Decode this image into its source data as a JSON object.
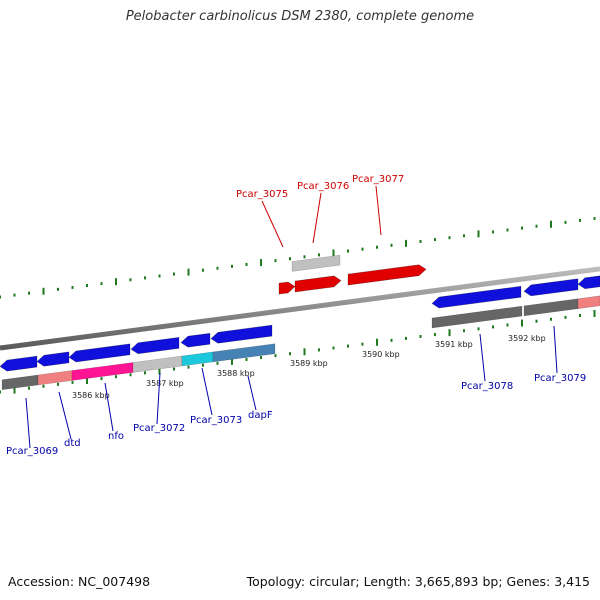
{
  "title": "Pelobacter carbinolicus DSM 2380, complete genome",
  "footer": {
    "accession": "Accession: NC_007498",
    "summary": "Topology: circular; Length: 3,665,893 bp; Genes: 3,415"
  },
  "colors": {
    "backbone": "#888888",
    "tick": "#1f7a1f",
    "forward_gene": "#e00000",
    "reverse_gene": "#1010dd",
    "label_forward": "#cc0000",
    "label_reverse": "#0000aa",
    "cog_gray": "#c0c0c0",
    "cog_dark": "#666666",
    "cog_salmon": "#f08080",
    "cog_magenta": "#ff1493",
    "cog_cyan": "#1ec8dc",
    "cog_steel": "#4682b4"
  },
  "scale_labels": [
    "3586 kbp",
    "3587 kbp",
    "3588 kbp",
    "3589 kbp",
    "3590 kbp",
    "3591 kbp",
    "3592 kbp"
  ],
  "genes": [
    {
      "name": "Pcar_3069",
      "strand": "reverse"
    },
    {
      "name": "dtd",
      "strand": "reverse"
    },
    {
      "name": "nfo",
      "strand": "reverse"
    },
    {
      "name": "Pcar_3072",
      "strand": "reverse"
    },
    {
      "name": "Pcar_3073",
      "strand": "reverse"
    },
    {
      "name": "dapF",
      "strand": "reverse"
    },
    {
      "name": "Pcar_3075",
      "strand": "forward"
    },
    {
      "name": "Pcar_3076",
      "strand": "forward"
    },
    {
      "name": "Pcar_3077",
      "strand": "forward"
    },
    {
      "name": "Pcar_3078",
      "strand": "reverse"
    },
    {
      "name": "Pcar_3079",
      "strand": "reverse"
    }
  ]
}
